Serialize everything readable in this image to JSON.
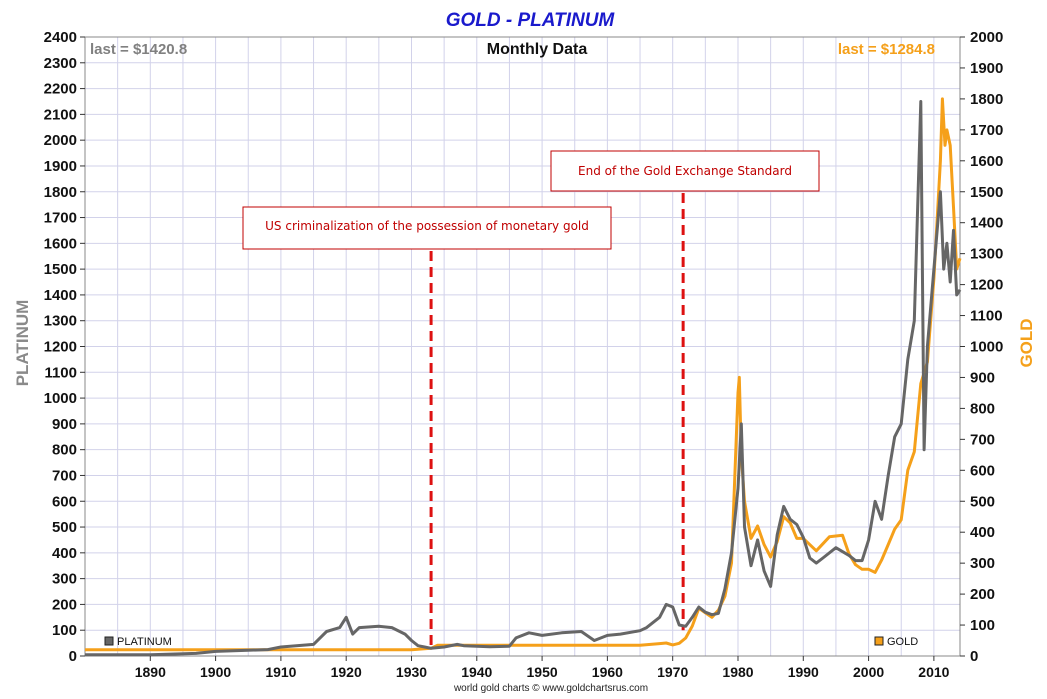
{
  "chart_data": {
    "type": "line",
    "title": "GOLD - PLATINUM",
    "subtitle": "Monthly Data",
    "ylabel_left": "PLATINUM",
    "ylabel_right": "GOLD",
    "credit": "world gold charts © www.goldchartsrus.com",
    "xlim": [
      1880,
      2014
    ],
    "ylim_left": [
      0,
      2400
    ],
    "ylim_right": [
      0,
      2000
    ],
    "x_ticks": [
      1890,
      1900,
      1910,
      1920,
      1930,
      1940,
      1950,
      1960,
      1970,
      1980,
      1990,
      2000,
      2010
    ],
    "y_ticks_left": [
      0,
      100,
      200,
      300,
      400,
      500,
      600,
      700,
      800,
      900,
      1000,
      1100,
      1200,
      1300,
      1400,
      1500,
      1600,
      1700,
      1800,
      1900,
      2000,
      2100,
      2200,
      2300,
      2400
    ],
    "y_ticks_right": [
      0,
      100,
      200,
      300,
      400,
      500,
      600,
      700,
      800,
      900,
      1000,
      1100,
      1200,
      1300,
      1400,
      1500,
      1600,
      1700,
      1800,
      1900,
      2000
    ],
    "grid": true,
    "colors": {
      "platinum": "#666666",
      "gold": "#f5a01a",
      "title": "#1a1acc",
      "annotation": "#c00000",
      "grid": "#d2d2ea"
    },
    "last_platinum": "last = $1420.8",
    "last_gold": "last = $1284.8",
    "series": [
      {
        "name": "PLATINUM",
        "axis": "left",
        "x": [
          1880,
          1890,
          1897,
          1900,
          1905,
          1908,
          1910,
          1915,
          1917,
          1919,
          1920,
          1921,
          1922,
          1925,
          1927,
          1929,
          1930,
          1931,
          1932,
          1933,
          1935,
          1937,
          1938,
          1940,
          1942,
          1945,
          1946,
          1948,
          1950,
          1953,
          1956,
          1958,
          1960,
          1962,
          1965,
          1966,
          1968,
          1969,
          1970,
          1971,
          1972,
          1973,
          1974,
          1975,
          1976,
          1977,
          1978,
          1979,
          1980,
          1980.5,
          1981,
          1982,
          1983,
          1984,
          1985,
          1986,
          1987,
          1988,
          1989,
          1990,
          1991,
          1992,
          1993,
          1995,
          1997,
          1998,
          1999,
          2000,
          2001,
          2002,
          2003,
          2004,
          2005,
          2006,
          2007,
          2008,
          2008.5,
          2009,
          2010,
          2011,
          2011.5,
          2012,
          2012.5,
          2013,
          2013.5,
          2014
        ],
        "y": [
          5,
          5,
          10,
          18,
          22,
          25,
          35,
          45,
          95,
          110,
          150,
          85,
          110,
          115,
          110,
          85,
          60,
          40,
          35,
          30,
          35,
          45,
          40,
          38,
          36,
          38,
          70,
          90,
          80,
          90,
          95,
          60,
          80,
          85,
          98,
          110,
          150,
          200,
          190,
          120,
          115,
          150,
          190,
          170,
          160,
          165,
          260,
          400,
          650,
          900,
          500,
          350,
          450,
          330,
          270,
          470,
          580,
          530,
          510,
          460,
          380,
          360,
          380,
          420,
          390,
          370,
          370,
          450,
          600,
          530,
          700,
          850,
          900,
          1150,
          1300,
          2150,
          800,
          1200,
          1500,
          1800,
          1500,
          1600,
          1450,
          1650,
          1400,
          1420
        ]
      },
      {
        "name": "GOLD",
        "axis": "right",
        "x": [
          1880,
          1930,
          1933,
          1934,
          1935,
          1940,
          1945,
          1950,
          1960,
          1965,
          1968,
          1969,
          1970,
          1971,
          1972,
          1973,
          1974,
          1975,
          1976,
          1977,
          1978,
          1979,
          1980,
          1980.2,
          1980.5,
          1981,
          1982,
          1983,
          1984,
          1985,
          1986,
          1987,
          1988,
          1989,
          1990,
          1992,
          1994,
          1996,
          1997,
          1998,
          1999,
          2000,
          2001,
          2002,
          2003,
          2004,
          2005,
          2006,
          2007,
          2008,
          2009,
          2010,
          2011,
          2011.3,
          2011.7,
          2012,
          2012.5,
          2013,
          2013.5,
          2014
        ],
        "y": [
          20,
          20,
          25,
          35,
          35,
          35,
          35,
          35,
          35,
          35,
          40,
          42,
          36,
          41,
          58,
          97,
          154,
          140,
          125,
          148,
          193,
          300,
          850,
          900,
          650,
          500,
          380,
          420,
          360,
          320,
          370,
          450,
          430,
          380,
          380,
          340,
          385,
          390,
          330,
          295,
          280,
          280,
          270,
          310,
          360,
          410,
          440,
          600,
          660,
          880,
          950,
          1220,
          1600,
          1800,
          1650,
          1700,
          1650,
          1450,
          1250,
          1285
        ]
      }
    ],
    "annotations": [
      {
        "text": "US criminalization of the possession of monetary gold",
        "x": 1933
      },
      {
        "text": "End of the Gold Exchange Standard",
        "x": 1971.6
      }
    ]
  }
}
